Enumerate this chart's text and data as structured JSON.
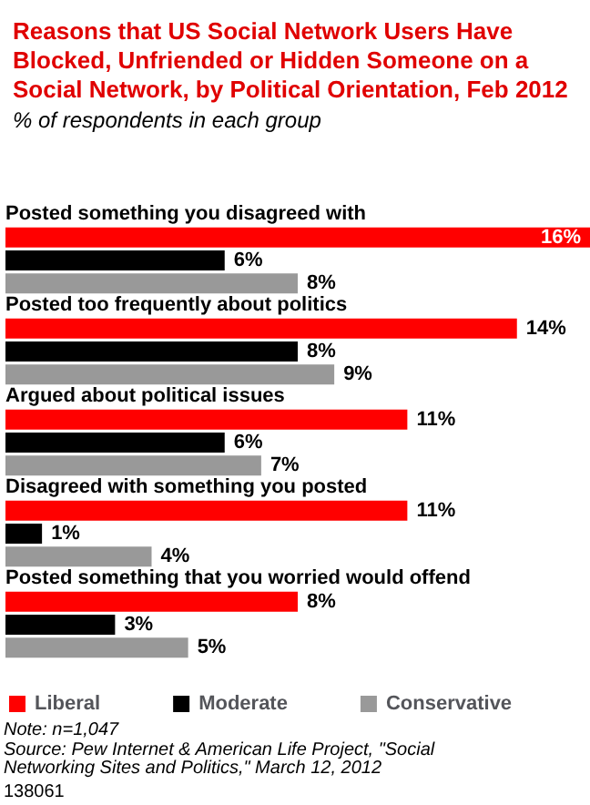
{
  "chart_data": {
    "type": "bar",
    "orientation": "horizontal",
    "title": "Reasons that US Social Network Users Have Blocked, Unfriended or Hidden Someone on a Social Network, by Political Orientation, Feb 2012",
    "subtitle": "% of respondents in each group",
    "categories": [
      "Posted something you disagreed with",
      "Posted too frequently about politics",
      "Argued about political issues",
      "Disagreed with something you posted",
      "Posted something that you worried would offend"
    ],
    "series": [
      {
        "name": "Liberal",
        "color": "#ff0000",
        "values": [
          16,
          14,
          11,
          11,
          8
        ],
        "value_labels": [
          "16%",
          "14%",
          "11%",
          "11%",
          "8%"
        ]
      },
      {
        "name": "Moderate",
        "color": "#000000",
        "values": [
          6,
          8,
          6,
          1,
          3
        ],
        "value_labels": [
          "6%",
          "8%",
          "6%",
          "1%",
          "3%"
        ]
      },
      {
        "name": "Conservative",
        "color": "#999999",
        "values": [
          8,
          9,
          7,
          4,
          5
        ],
        "value_labels": [
          "8%",
          "9%",
          "7%",
          "4%",
          "5%"
        ]
      }
    ],
    "legend": "bottom",
    "tick_labels": "y",
    "annotations": [
      "Note: n=1,047",
      "Source: Pew Internet & American Life Project, \"Social Networking Sites and Politics,\" March 12, 2012",
      "138061"
    ]
  }
}
